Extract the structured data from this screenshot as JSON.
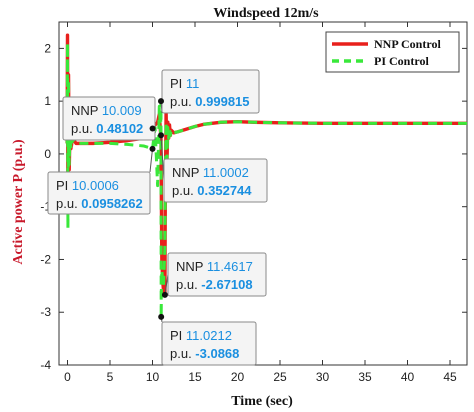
{
  "chart_data": {
    "type": "line",
    "title": "Windspeed 12m/s",
    "xlabel": "Time (sec)",
    "ylabel": "Active power P (p.u.)",
    "xlim": [
      -1,
      47
    ],
    "ylim": [
      -4,
      2.5
    ],
    "xticks": [
      0,
      5,
      10,
      15,
      20,
      25,
      30,
      35,
      40,
      45
    ],
    "yticks": [
      -4,
      -3,
      -2,
      -1,
      0,
      1,
      2
    ],
    "grid": false,
    "legend_position": "top-right",
    "series": [
      {
        "name": "NNP Control",
        "color": "#e8201c",
        "style": "solid",
        "x": [
          -0.05,
          0,
          0.05,
          0.12,
          0.2,
          0.3,
          0.4,
          0.6,
          1,
          3,
          5,
          7,
          9,
          9.6,
          10.009,
          10.3,
          10.6,
          10.8,
          10.95,
          11.0002,
          11.05,
          11.1,
          11.2,
          11.3,
          11.4617,
          11.5,
          11.6,
          11.7,
          11.8,
          11.9,
          12,
          12.1,
          12.2,
          12.5,
          13,
          14,
          15,
          16,
          18,
          20,
          22,
          25,
          30,
          35,
          40,
          45,
          47
        ],
        "values": [
          0.2,
          2.25,
          -1.1,
          1.5,
          -0.3,
          0.5,
          0.1,
          0.3,
          0.2,
          0.2,
          0.22,
          0.25,
          0.3,
          0.35,
          0.481,
          0.55,
          0.6,
          0.75,
          0.4,
          0.353,
          -1.0,
          -2.0,
          -2.4,
          -2.6,
          -2.671,
          -1.0,
          0.8,
          -0.2,
          0.6,
          0.3,
          0.55,
          0.35,
          0.45,
          0.4,
          0.42,
          0.47,
          0.52,
          0.56,
          0.6,
          0.61,
          0.6,
          0.59,
          0.58,
          0.58,
          0.58,
          0.58,
          0.58
        ]
      },
      {
        "name": "PI Control",
        "color": "#39e83a",
        "style": "dashed",
        "x": [
          -0.05,
          0,
          0.05,
          0.12,
          0.2,
          0.3,
          0.4,
          0.6,
          1,
          3,
          5,
          7,
          9,
          9.6,
          10.0006,
          10.3,
          10.6,
          10.8,
          10.95,
          11,
          11.0212,
          11.05,
          11.1,
          11.2,
          11.3,
          11.45,
          11.5,
          11.6,
          11.7,
          11.8,
          11.9,
          12,
          12.1,
          12.2,
          12.5,
          13,
          14,
          15,
          16,
          18,
          20,
          22,
          25,
          30,
          35,
          40,
          45,
          47
        ],
        "values": [
          0.2,
          2.1,
          -1.4,
          1.4,
          -0.2,
          0.4,
          0.1,
          0.3,
          0.2,
          0.2,
          0.2,
          0.18,
          0.15,
          0.12,
          0.096,
          0.5,
          -0.6,
          0.9,
          0.4,
          1.0,
          -3.087,
          -2.5,
          -2.2,
          -2.4,
          -2.5,
          -1.8,
          -0.8,
          0.6,
          -0.1,
          0.5,
          0.3,
          0.5,
          0.35,
          0.45,
          0.4,
          0.42,
          0.47,
          0.52,
          0.56,
          0.6,
          0.61,
          0.6,
          0.59,
          0.58,
          0.58,
          0.58,
          0.58,
          0.58
        ]
      }
    ],
    "datatips": [
      {
        "series": "NNP Control",
        "name": "NNP",
        "x_str": "10.009",
        "y_str": "0.48102",
        "x": 10.009,
        "y": 0.481,
        "ylabel": "p.u."
      },
      {
        "series": "PI Control",
        "name": "PI",
        "x_str": "11",
        "y_str": "0.999815",
        "x": 11,
        "y": 1.0,
        "ylabel": "p.u."
      },
      {
        "series": "PI Control",
        "name": "PI",
        "x_str": "10.0006",
        "y_str": "0.0958262",
        "x": 10.0006,
        "y": 0.096,
        "ylabel": "p.u."
      },
      {
        "series": "NNP Control",
        "name": "NNP",
        "x_str": "11.0002",
        "y_str": "0.352744",
        "x": 11.0002,
        "y": 0.353,
        "ylabel": "p.u."
      },
      {
        "series": "NNP Control",
        "name": "NNP",
        "x_str": "11.4617",
        "y_str": "-2.67108",
        "x": 11.4617,
        "y": -2.671,
        "ylabel": "p.u."
      },
      {
        "series": "PI Control",
        "name": "PI",
        "x_str": "11.0212",
        "y_str": "-3.0868",
        "x": 11.0212,
        "y": -3.087,
        "ylabel": "p.u."
      }
    ],
    "datatip_style": {
      "value_color": "#1a8fe0"
    }
  }
}
